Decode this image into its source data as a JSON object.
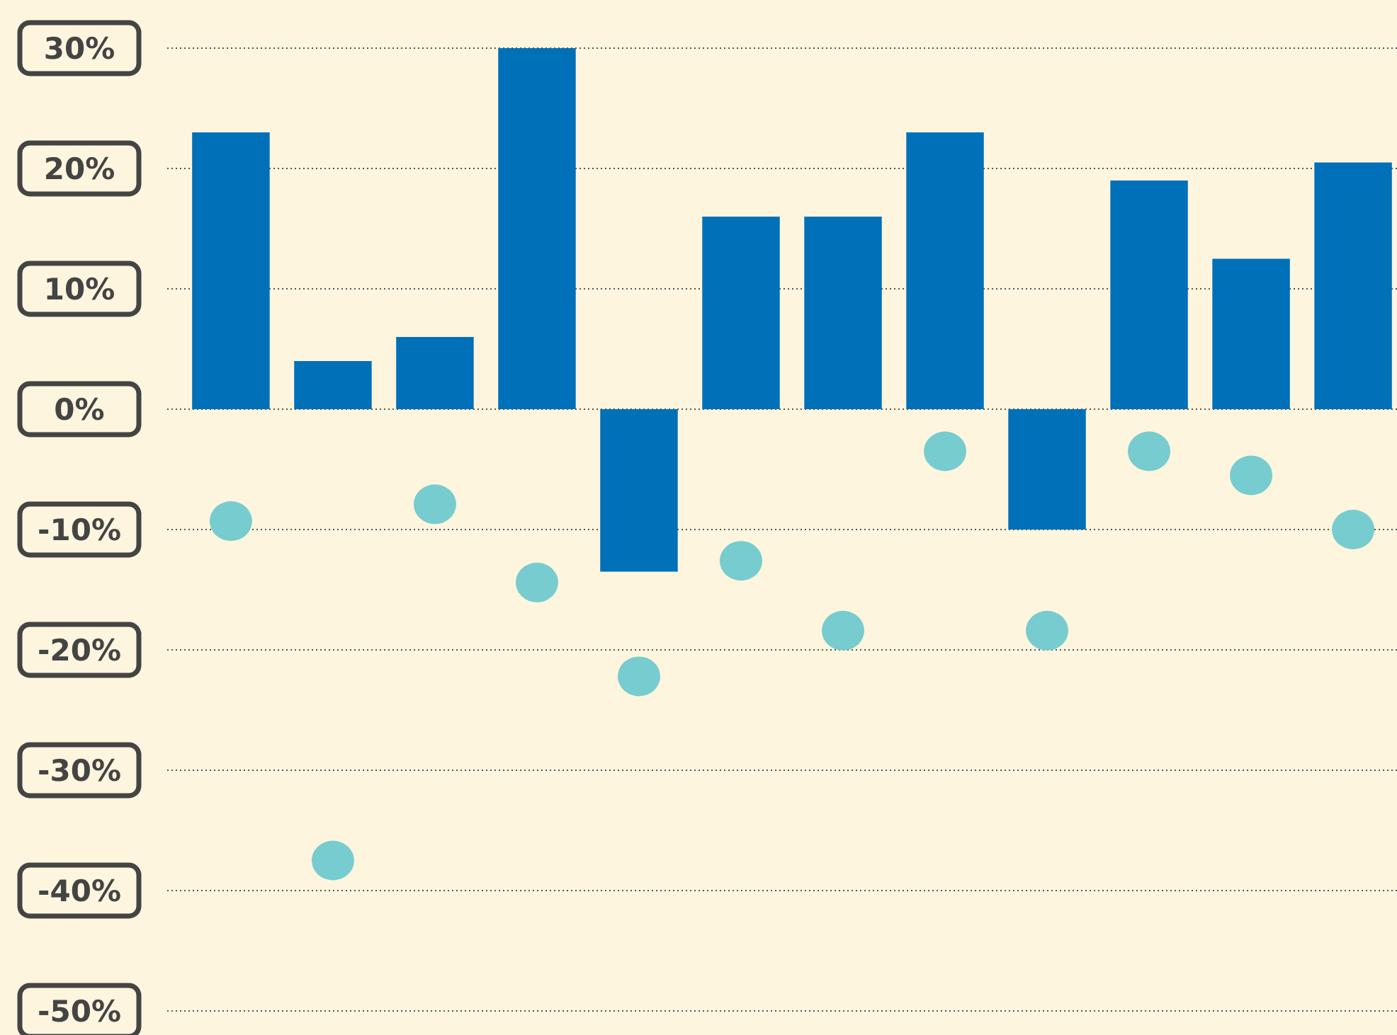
{
  "chart_data": {
    "type": "bar",
    "categories": [
      null,
      null,
      null,
      null,
      null,
      null,
      null,
      null,
      null,
      null,
      null,
      null
    ],
    "ylim": [
      -50,
      30
    ],
    "yticks": [
      {
        "value": 30,
        "label": "30%"
      },
      {
        "value": 20,
        "label": "20%"
      },
      {
        "value": 10,
        "label": "10%"
      },
      {
        "value": 0,
        "label": "0%"
      },
      {
        "value": -10,
        "label": "-10%"
      },
      {
        "value": -20,
        "label": "-20%"
      },
      {
        "value": -30,
        "label": "-30%"
      },
      {
        "value": -40,
        "label": "-40%"
      },
      {
        "value": -50,
        "label": "-50%"
      }
    ],
    "grid": "y",
    "marker": "circle",
    "series": [
      {
        "color": "#0070b8",
        "values": [
          23,
          4,
          6,
          30,
          -13.5,
          16,
          16,
          23,
          -10,
          19,
          12.5,
          20.5
        ]
      },
      {
        "type": "scatter",
        "color": "#76cccf",
        "values": [
          -9.3,
          -37.5,
          -7.9,
          -14.4,
          -22.2,
          -12.6,
          -18.4,
          -3.5,
          -18.4,
          -3.5,
          -5.5,
          -10
        ]
      }
    ]
  }
}
